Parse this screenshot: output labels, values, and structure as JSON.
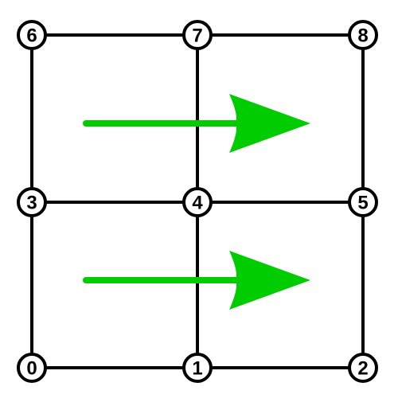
{
  "nodes": [
    {
      "id": 0,
      "label": "0",
      "row": 0,
      "col": 0
    },
    {
      "id": 1,
      "label": "1",
      "row": 0,
      "col": 1
    },
    {
      "id": 2,
      "label": "2",
      "row": 0,
      "col": 2
    },
    {
      "id": 3,
      "label": "3",
      "row": 1,
      "col": 0
    },
    {
      "id": 4,
      "label": "4",
      "row": 1,
      "col": 1
    },
    {
      "id": 5,
      "label": "5",
      "row": 1,
      "col": 2
    },
    {
      "id": 6,
      "label": "6",
      "row": 2,
      "col": 0
    },
    {
      "id": 7,
      "label": "7",
      "row": 2,
      "col": 1
    },
    {
      "id": 8,
      "label": "8",
      "row": 2,
      "col": 2
    }
  ],
  "edges": [
    [
      0,
      1
    ],
    [
      1,
      2
    ],
    [
      3,
      4
    ],
    [
      4,
      5
    ],
    [
      6,
      7
    ],
    [
      7,
      8
    ],
    [
      0,
      3
    ],
    [
      3,
      6
    ],
    [
      1,
      4
    ],
    [
      4,
      7
    ],
    [
      2,
      5
    ],
    [
      5,
      8
    ]
  ],
  "arrows": [
    {
      "cell_row": 0,
      "direction": "right"
    },
    {
      "cell_row": 1,
      "direction": "right"
    }
  ],
  "colors": {
    "edge": "#000000",
    "node_fill": "#ffffff",
    "arrow": "#00cc00"
  }
}
